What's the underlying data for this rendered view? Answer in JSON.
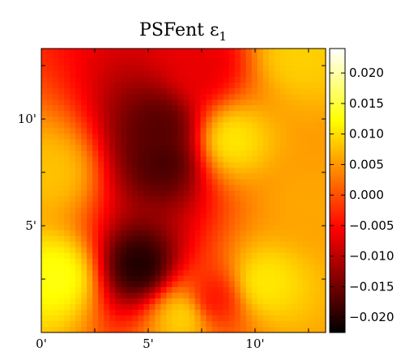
{
  "chart_data": {
    "type": "heatmap",
    "title": "PSFent ε",
    "title_subscript": "1",
    "xlabel": "",
    "ylabel": "",
    "x_range_arcmin": [
      0,
      13.3
    ],
    "y_range_arcmin": [
      0,
      13.3
    ],
    "x_ticks": [
      {
        "value": 0,
        "label": "0'"
      },
      {
        "value": 5,
        "label": "5'"
      },
      {
        "value": 10,
        "label": "10'"
      }
    ],
    "y_ticks": [
      {
        "value": 5,
        "label": "5'"
      },
      {
        "value": 10,
        "label": "10'"
      }
    ],
    "colormap": "hot",
    "colorbar": {
      "vmin": -0.0225,
      "vmax": 0.024,
      "ticks": [
        {
          "value": 0.02,
          "label": "0.020"
        },
        {
          "value": 0.015,
          "label": "0.015"
        },
        {
          "value": 0.01,
          "label": "0.010"
        },
        {
          "value": 0.005,
          "label": "0.005"
        },
        {
          "value": 0.0,
          "label": "0.000"
        },
        {
          "value": -0.005,
          "label": "−0.005"
        },
        {
          "value": -0.01,
          "label": "−0.010"
        },
        {
          "value": -0.015,
          "label": "−0.015"
        },
        {
          "value": -0.02,
          "label": "−0.020"
        }
      ]
    },
    "field_features": [
      {
        "x": 4.6,
        "y": 3.1,
        "value": -0.021
      },
      {
        "x": 5.7,
        "y": 8.0,
        "value": -0.018
      },
      {
        "x": 5.6,
        "y": 9.6,
        "value": -0.017
      },
      {
        "x": 7.5,
        "y": 12.5,
        "value": -0.007
      },
      {
        "x": 8.0,
        "y": 1.5,
        "value": -0.005
      },
      {
        "x": 8.9,
        "y": 9.0,
        "value": 0.011
      },
      {
        "x": 10.4,
        "y": 2.3,
        "value": 0.011
      },
      {
        "x": 0.8,
        "y": 2.6,
        "value": 0.013
      },
      {
        "x": 6.7,
        "y": 0.8,
        "value": 0.01
      },
      {
        "x": 12.0,
        "y": 13.0,
        "value": 0.009
      },
      {
        "x": 0.5,
        "y": 7.5,
        "value": 0.008
      },
      {
        "x": 12.5,
        "y": 6.0,
        "value": 0.006
      }
    ]
  }
}
